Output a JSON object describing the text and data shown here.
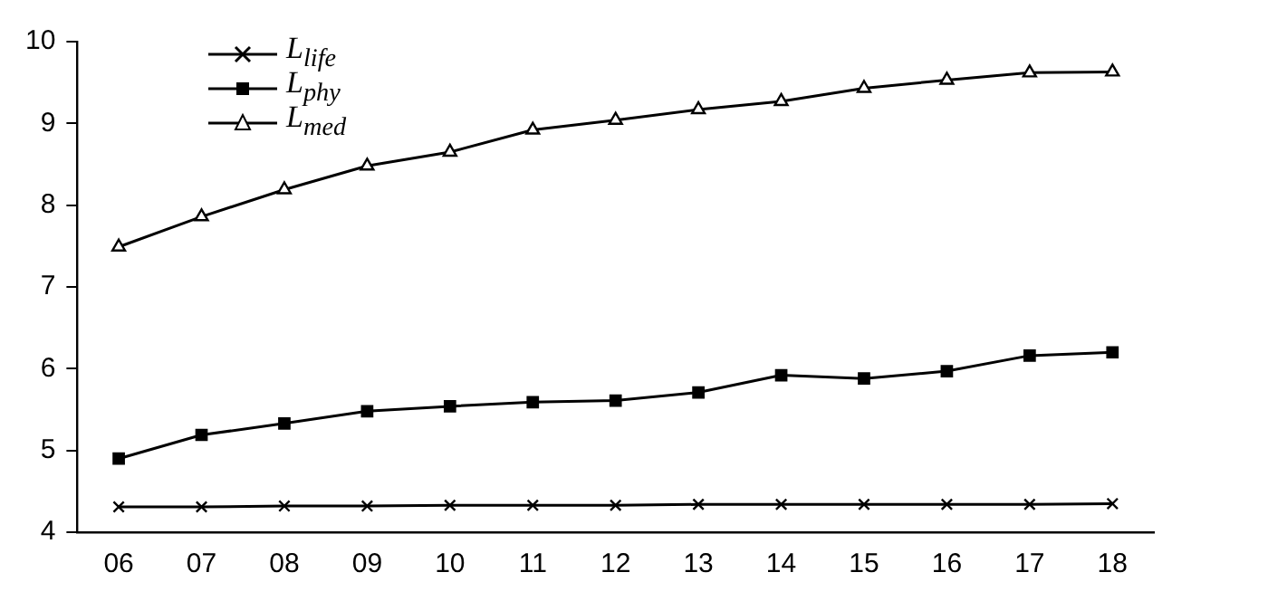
{
  "chart_data": {
    "type": "line",
    "categories": [
      "06",
      "07",
      "08",
      "09",
      "10",
      "11",
      "12",
      "13",
      "14",
      "15",
      "16",
      "17",
      "18"
    ],
    "series": [
      {
        "name": "L$_{life}$",
        "color": "#000000",
        "marker": "cross",
        "values": [
          4.31,
          4.31,
          4.32,
          4.32,
          4.33,
          4.33,
          4.33,
          4.34,
          4.34,
          4.34,
          4.34,
          4.34,
          4.35
        ]
      },
      {
        "name": "L$_{phy}$",
        "color": "#000000",
        "marker": "square",
        "values": [
          4.9,
          5.19,
          5.33,
          5.48,
          5.54,
          5.59,
          5.61,
          5.71,
          5.92,
          5.88,
          5.97,
          6.16,
          6.2
        ]
      },
      {
        "name": "L$_{med}$",
        "color": "#000000",
        "marker": "triangle",
        "values": [
          7.49,
          7.86,
          8.19,
          8.48,
          8.65,
          8.92,
          9.04,
          9.17,
          9.27,
          9.43,
          9.53,
          9.62,
          9.63
        ]
      }
    ],
    "ylim": [
      4,
      10
    ],
    "yticks": [
      4,
      5,
      6,
      7,
      8,
      9,
      10
    ],
    "grid": false,
    "legend": "top left",
    "line_style": "solid"
  }
}
